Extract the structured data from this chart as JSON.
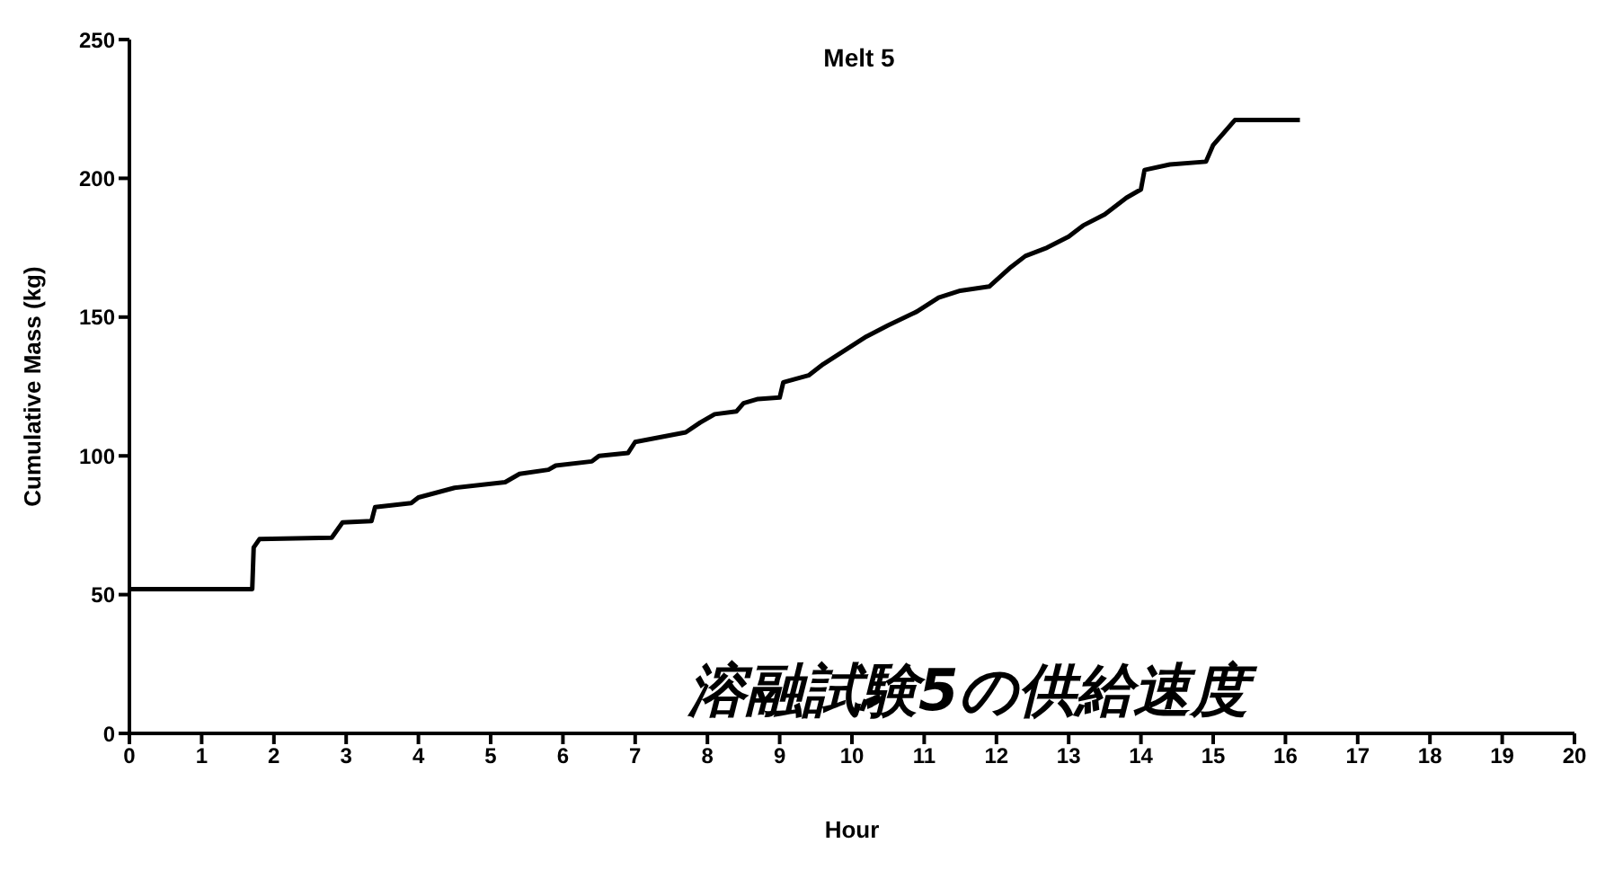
{
  "chart_data": {
    "type": "line",
    "title": "Melt 5",
    "xlabel": "Hour",
    "ylabel": "Cumulative Mass (kg)",
    "annotations": [
      "溶融試験5の供給速度"
    ],
    "xlim": [
      0,
      20
    ],
    "xticks": [
      0,
      1,
      2,
      3,
      4,
      5,
      6,
      7,
      8,
      9,
      10,
      11,
      12,
      13,
      14,
      15,
      16,
      17,
      18,
      19,
      20
    ],
    "ylim": [
      0,
      250
    ],
    "yticks": [
      0,
      50,
      100,
      150,
      200,
      250
    ],
    "grid": false,
    "legend": false,
    "marker": "none",
    "line_style": "solid",
    "series": [
      {
        "color": "#000000",
        "x": [
          0,
          1.7,
          1.72,
          1.8,
          2.8,
          2.95,
          3.35,
          3.4,
          3.9,
          4.0,
          4.5,
          5.2,
          5.4,
          5.8,
          5.9,
          6.4,
          6.5,
          6.9,
          7.0,
          7.7,
          7.9,
          8.1,
          8.4,
          8.5,
          8.7,
          9.0,
          9.05,
          9.4,
          9.6,
          9.9,
          10.2,
          10.5,
          10.9,
          11.2,
          11.5,
          11.9,
          12.2,
          12.4,
          12.7,
          13.0,
          13.2,
          13.5,
          13.8,
          14.0,
          14.05,
          14.4,
          14.9,
          15.0,
          15.3,
          16.2
        ],
        "values": [
          52,
          52,
          67,
          70,
          70.5,
          76,
          76.5,
          81.5,
          83,
          85,
          88.5,
          90.5,
          93.5,
          95,
          96.5,
          98,
          100,
          101,
          105,
          108.5,
          112,
          115,
          116,
          119,
          120.5,
          121,
          126.5,
          129,
          133,
          138,
          143,
          147,
          152,
          157,
          159.5,
          161,
          168,
          172,
          175,
          179,
          183,
          187,
          193,
          196,
          203,
          205,
          206,
          212,
          221,
          221
        ]
      }
    ]
  }
}
